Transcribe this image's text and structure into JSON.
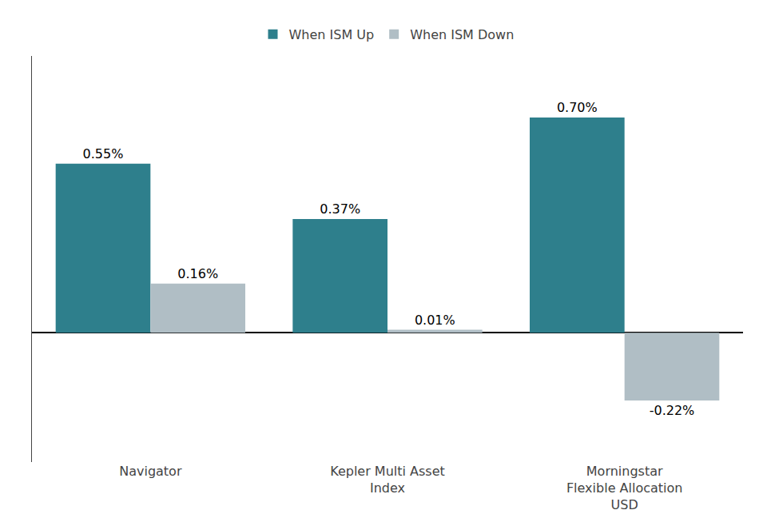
{
  "chart_data": {
    "type": "bar",
    "categories": [
      "Navigator",
      "Kepler Multi Asset\nIndex",
      "Morningstar\nFlexible Allocation\nUSD"
    ],
    "series": [
      {
        "name": "When ISM Up",
        "color": "#2e7f8c",
        "values": [
          0.55,
          0.37,
          0.7
        ],
        "value_labels": [
          "0.55%",
          "0.37%",
          "0.70%"
        ]
      },
      {
        "name": "When ISM Down",
        "color": "#b0bec5",
        "values": [
          0.16,
          0.01,
          -0.22
        ],
        "value_labels": [
          "0.16%",
          "0.01%",
          "-0.22%"
        ]
      }
    ],
    "ylim": [
      -0.42,
      0.9
    ],
    "grid": false,
    "legend": "top",
    "data_labels": true,
    "tick_labels": "x"
  }
}
